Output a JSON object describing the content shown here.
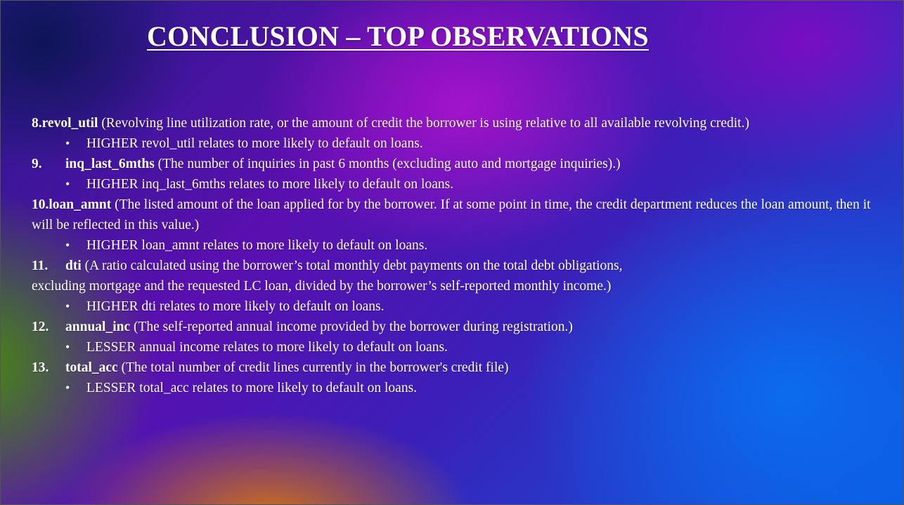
{
  "slide": {
    "title": "CONCLUSION – TOP OBSERVATIONS",
    "items": [
      {
        "number": "8.",
        "key": "revol_util",
        "description": " (Revolving line utilization rate, or the amount of credit the borrower is using relative to all  available revolving credit.)",
        "bullet": "HIGHER revol_util relates to more likely to default on loans."
      },
      {
        "number": "9.",
        "key": "inq_last_6mths",
        "description": " (The number of inquiries in past 6 months (excluding auto and mortgage inquiries).)",
        "bullet": "HIGHER inq_last_6mths relates to more likely to default on loans."
      },
      {
        "number": "10.",
        "key": "loan_amnt",
        "description": " (The listed amount of the loan applied for by the borrower. If at some point in time, the  credit department reduces the loan amount, then it will be reflected in this value.)",
        "bullet": "HIGHER loan_amnt relates to more likely to default on loans."
      },
      {
        "number": "11.",
        "key": "dti",
        "description": " (A ratio calculated using the borrower’s total monthly debt payments on the total debt obligations, excluding mortgage and the requested LC loan, divided by the borrower’s self-reported monthly income.)",
        "bullet": "HIGHER dti relates to more likely to default on loans."
      },
      {
        "number": "12.",
        "key": "annual_inc",
        "description": " (The self-reported annual income provided by the borrower during registration.)",
        "bullet": "LESSER annual income relates to more likely to default on loans."
      },
      {
        "number": "13.",
        "key": "total_acc",
        "description": " (The total number of credit lines currently in the borrower's credit file)",
        "bullet": "LESSER total_acc relates to more likely to default on loans."
      }
    ],
    "bullet_glyph": "•"
  }
}
